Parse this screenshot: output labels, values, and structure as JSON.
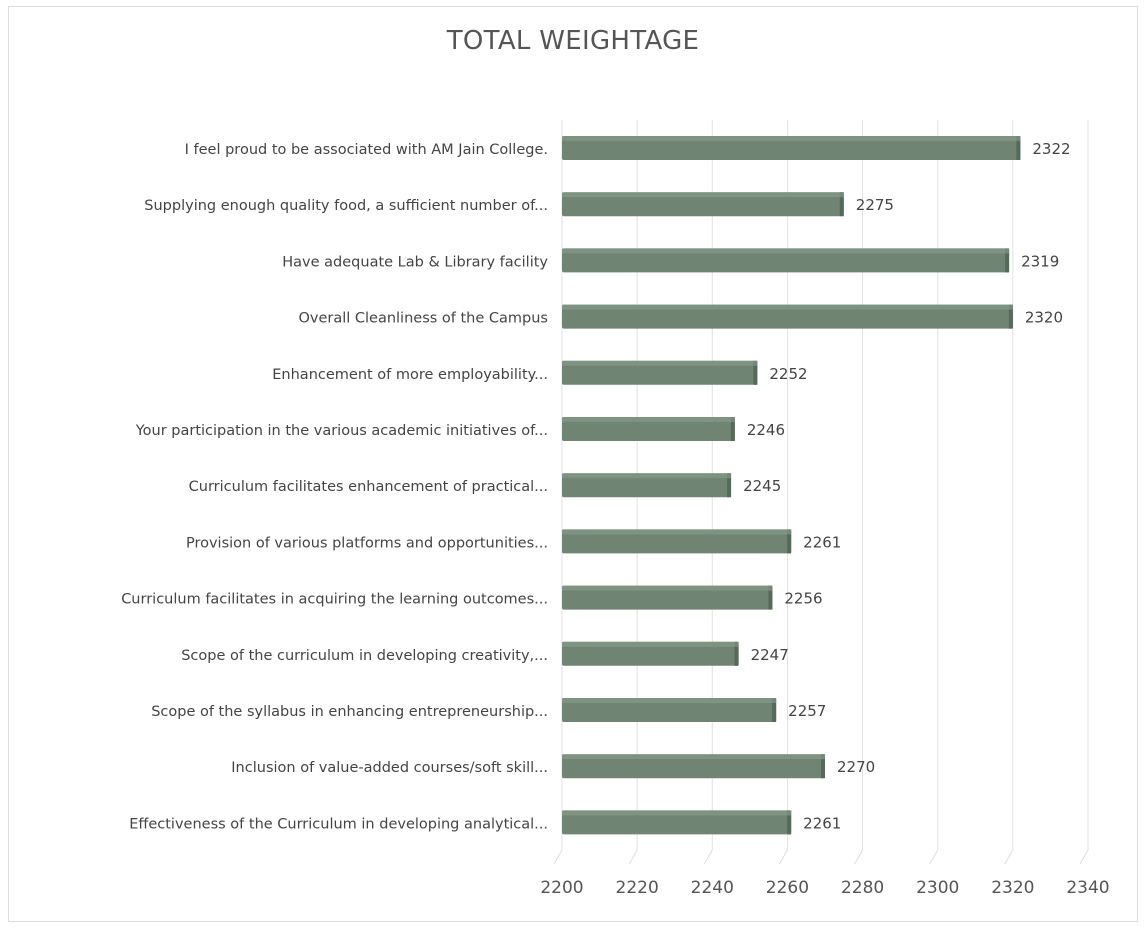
{
  "chart_data": {
    "type": "bar",
    "orientation": "horizontal",
    "title": "TOTAL WEIGHTAGE",
    "xlabel": "",
    "ylabel": "",
    "xlim": [
      2200,
      2340
    ],
    "xticks": [
      2200,
      2220,
      2240,
      2260,
      2280,
      2300,
      2320,
      2340
    ],
    "grid": true,
    "legend": "none",
    "bar_color": "#6f8473",
    "categories": [
      "I feel proud to be associated with AM Jain College.",
      "Supplying enough quality food, a sufficient number of...",
      "Have adequate Lab & Library facility",
      "Overall Cleanliness of the Campus",
      "Enhancement of more employability...",
      "Your participation in the various academic initiatives of...",
      "Curriculum facilitates enhancement of practical...",
      "Provision of various platforms and opportunities...",
      "Curriculum facilitates in acquiring the learning outcomes...",
      "Scope of the curriculum in developing creativity,...",
      "Scope of the syllabus in enhancing entrepreneurship...",
      "Inclusion of value-added courses/soft skill...",
      "Effectiveness of the Curriculum in developing analytical..."
    ],
    "values": [
      2322,
      2275,
      2319,
      2320,
      2252,
      2246,
      2245,
      2261,
      2256,
      2247,
      2257,
      2270,
      2261
    ]
  }
}
